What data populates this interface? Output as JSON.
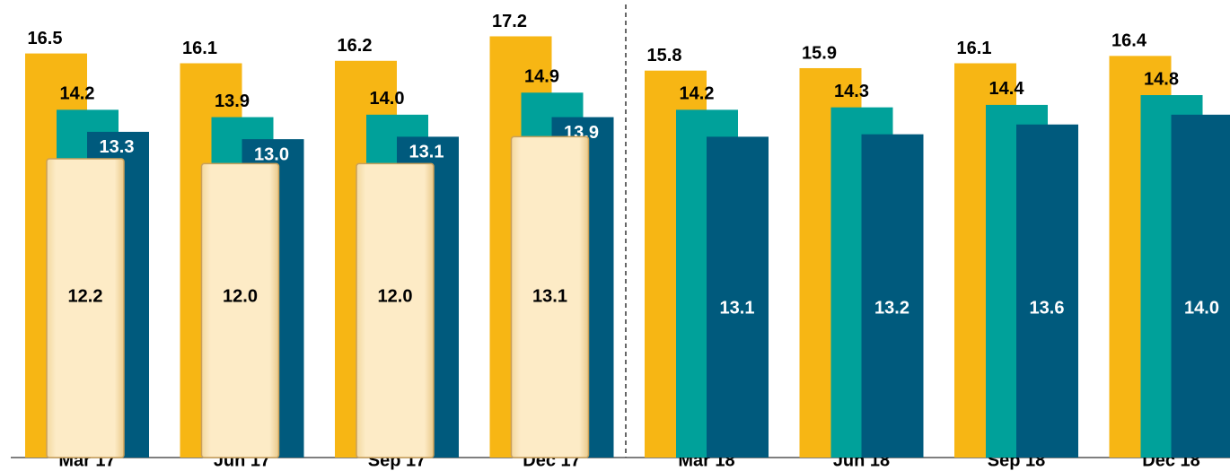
{
  "chart_data": {
    "type": "bar",
    "categories": [
      "Mar 17",
      "Jun 17",
      "Sep 17",
      "Dec 17",
      "Mar 18",
      "Jun 18",
      "Sep 18",
      "Dec 18"
    ],
    "series": [
      {
        "color": "#f7b614",
        "values": [
          16.5,
          16.1,
          16.2,
          17.2,
          15.8,
          15.9,
          16.1,
          16.4
        ],
        "value_labels": [
          "16.5",
          "16.1",
          "16.2",
          "17.2",
          "15.8",
          "15.9",
          "16.1",
          "16.4"
        ]
      },
      {
        "color": "#00a19a",
        "values": [
          14.2,
          13.9,
          14.0,
          14.9,
          14.2,
          14.3,
          14.4,
          14.8
        ],
        "value_labels": [
          "14.2",
          "13.9",
          "14.0",
          "14.9",
          "14.2",
          "14.3",
          "14.4",
          "14.8"
        ]
      },
      {
        "color": "#005a7d",
        "values": [
          13.3,
          13.0,
          13.1,
          13.9,
          13.1,
          13.2,
          13.6,
          14.0
        ],
        "value_labels": [
          "13.3",
          "13.0",
          "13.1",
          "13.9",
          "13.1",
          "13.2",
          "13.6",
          "14.0"
        ]
      },
      {
        "color": "#fde9c0",
        "values": [
          12.2,
          12.0,
          12.0,
          13.1,
          null,
          null,
          null,
          null
        ],
        "value_labels": [
          "12.2",
          "12.0",
          "12.0",
          "13.1",
          null,
          null,
          null,
          null
        ]
      }
    ],
    "ylim": [
      0,
      18.5
    ]
  }
}
